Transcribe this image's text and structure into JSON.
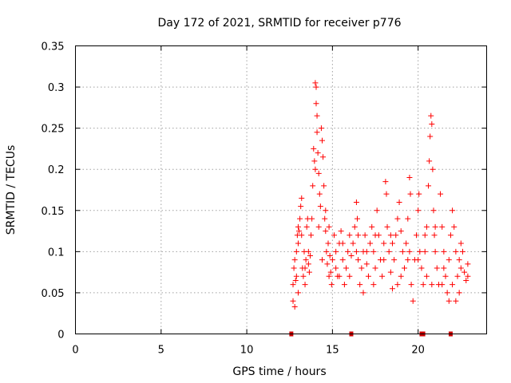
{
  "chart_data": {
    "type": "scatter",
    "title": "Day 172 of 2021, SRMTID for receiver p776",
    "xlabel": "GPS time / hours",
    "ylabel": "SRMTID / TECUs",
    "xlim": [
      0,
      24
    ],
    "ylim": [
      0,
      0.35
    ],
    "x_ticks": [
      "0",
      "5",
      "10",
      "15",
      "20"
    ],
    "x_tick_values": [
      0,
      5,
      10,
      15,
      20
    ],
    "y_ticks": [
      "0",
      "0.05",
      "0.1",
      "0.15",
      "0.2",
      "0.25",
      "0.3",
      "0.35"
    ],
    "y_tick_values": [
      0,
      0.05,
      0.1,
      0.15,
      0.2,
      0.25,
      0.3,
      0.35
    ],
    "grid": true,
    "marker": "+",
    "series_color": "#ff0000",
    "baseline_markers_x": [
      12.6,
      16.1,
      20.2,
      20.3,
      21.9
    ],
    "series": [
      {
        "name": "SRMTID",
        "points": [
          [
            12.7,
            0.04
          ],
          [
            12.7,
            0.06
          ],
          [
            12.75,
            0.08
          ],
          [
            12.8,
            0.09
          ],
          [
            12.8,
            0.033
          ],
          [
            12.85,
            0.065
          ],
          [
            12.9,
            0.07
          ],
          [
            12.95,
            0.12
          ],
          [
            13.0,
            0.13
          ],
          [
            13.0,
            0.11
          ],
          [
            13.05,
            0.125
          ],
          [
            13.1,
            0.14
          ],
          [
            13.15,
            0.155
          ],
          [
            13.2,
            0.165
          ],
          [
            13.25,
            0.08
          ],
          [
            13.3,
            0.07
          ],
          [
            13.35,
            0.1
          ],
          [
            13.4,
            0.06
          ],
          [
            13.45,
            0.09
          ],
          [
            13.5,
            0.13
          ],
          [
            13.55,
            0.14
          ],
          [
            13.6,
            0.085
          ],
          [
            13.65,
            0.075
          ],
          [
            13.7,
            0.095
          ],
          [
            13.75,
            0.12
          ],
          [
            13.8,
            0.14
          ],
          [
            13.85,
            0.18
          ],
          [
            13.9,
            0.225
          ],
          [
            13.95,
            0.21
          ],
          [
            14.0,
            0.2
          ],
          [
            14.0,
            0.305
          ],
          [
            14.05,
            0.3
          ],
          [
            14.05,
            0.28
          ],
          [
            14.1,
            0.265
          ],
          [
            14.1,
            0.245
          ],
          [
            14.15,
            0.22
          ],
          [
            14.2,
            0.195
          ],
          [
            14.25,
            0.17
          ],
          [
            14.3,
            0.155
          ],
          [
            14.35,
            0.25
          ],
          [
            14.4,
            0.235
          ],
          [
            14.45,
            0.215
          ],
          [
            14.5,
            0.18
          ],
          [
            14.55,
            0.14
          ],
          [
            14.6,
            0.125
          ],
          [
            14.65,
            0.1
          ],
          [
            14.7,
            0.085
          ],
          [
            14.75,
            0.11
          ],
          [
            14.8,
            0.13
          ],
          [
            14.85,
            0.095
          ],
          [
            14.9,
            0.075
          ],
          [
            14.95,
            0.06
          ],
          [
            15.0,
            0.09
          ],
          [
            15.1,
            0.12
          ],
          [
            15.2,
            0.1
          ],
          [
            15.3,
            0.07
          ],
          [
            15.4,
            0.11
          ],
          [
            15.5,
            0.125
          ],
          [
            15.6,
            0.09
          ],
          [
            15.7,
            0.06
          ],
          [
            15.8,
            0.08
          ],
          [
            15.9,
            0.1
          ],
          [
            16.0,
            0.12
          ],
          [
            16.1,
            0.095
          ],
          [
            16.2,
            0.11
          ],
          [
            16.3,
            0.13
          ],
          [
            16.4,
            0.16
          ],
          [
            16.45,
            0.14
          ],
          [
            16.5,
            0.09
          ],
          [
            16.6,
            0.06
          ],
          [
            16.7,
            0.08
          ],
          [
            16.8,
            0.1
          ],
          [
            16.9,
            0.12
          ],
          [
            17.0,
            0.085
          ],
          [
            17.1,
            0.07
          ],
          [
            17.2,
            0.11
          ],
          [
            17.3,
            0.13
          ],
          [
            17.4,
            0.1
          ],
          [
            17.5,
            0.08
          ],
          [
            17.6,
            0.15
          ],
          [
            17.7,
            0.12
          ],
          [
            17.8,
            0.09
          ],
          [
            17.9,
            0.07
          ],
          [
            18.0,
            0.11
          ],
          [
            18.1,
            0.185
          ],
          [
            18.15,
            0.17
          ],
          [
            18.2,
            0.13
          ],
          [
            18.3,
            0.1
          ],
          [
            18.4,
            0.075
          ],
          [
            18.5,
            0.055
          ],
          [
            18.6,
            0.09
          ],
          [
            18.7,
            0.12
          ],
          [
            18.8,
            0.14
          ],
          [
            18.9,
            0.16
          ],
          [
            19.0,
            0.125
          ],
          [
            19.1,
            0.1
          ],
          [
            19.2,
            0.08
          ],
          [
            19.3,
            0.11
          ],
          [
            19.4,
            0.14
          ],
          [
            19.5,
            0.19
          ],
          [
            19.55,
            0.17
          ],
          [
            19.6,
            0.06
          ],
          [
            19.7,
            0.04
          ],
          [
            19.8,
            0.09
          ],
          [
            19.9,
            0.12
          ],
          [
            20.0,
            0.15
          ],
          [
            20.05,
            0.17
          ],
          [
            20.1,
            0.1
          ],
          [
            20.2,
            0.08
          ],
          [
            20.3,
            0.06
          ],
          [
            20.4,
            0.1
          ],
          [
            20.5,
            0.13
          ],
          [
            20.6,
            0.18
          ],
          [
            20.65,
            0.21
          ],
          [
            20.7,
            0.24
          ],
          [
            20.75,
            0.265
          ],
          [
            20.8,
            0.255
          ],
          [
            20.85,
            0.2
          ],
          [
            20.9,
            0.15
          ],
          [
            20.95,
            0.12
          ],
          [
            21.0,
            0.1
          ],
          [
            21.1,
            0.08
          ],
          [
            21.2,
            0.06
          ],
          [
            21.3,
            0.17
          ],
          [
            21.4,
            0.13
          ],
          [
            21.5,
            0.1
          ],
          [
            21.6,
            0.07
          ],
          [
            21.7,
            0.05
          ],
          [
            21.8,
            0.09
          ],
          [
            21.9,
            0.12
          ],
          [
            22.0,
            0.15
          ],
          [
            22.1,
            0.13
          ],
          [
            22.2,
            0.1
          ],
          [
            22.3,
            0.07
          ],
          [
            22.4,
            0.05
          ],
          [
            22.5,
            0.08
          ],
          [
            22.6,
            0.1
          ],
          [
            22.7,
            0.075
          ],
          [
            22.8,
            0.065
          ],
          [
            22.9,
            0.085
          ],
          [
            12.9,
            0.1
          ],
          [
            13.2,
            0.12
          ],
          [
            13.6,
            0.1
          ],
          [
            14.2,
            0.13
          ],
          [
            14.6,
            0.15
          ],
          [
            15.2,
            0.08
          ],
          [
            15.6,
            0.11
          ],
          [
            16.0,
            0.07
          ],
          [
            16.5,
            0.12
          ],
          [
            17.0,
            0.1
          ],
          [
            17.5,
            0.12
          ],
          [
            18.0,
            0.09
          ],
          [
            18.5,
            0.11
          ],
          [
            19.0,
            0.07
          ],
          [
            19.5,
            0.1
          ],
          [
            20.0,
            0.09
          ],
          [
            20.5,
            0.07
          ],
          [
            21.0,
            0.13
          ],
          [
            21.5,
            0.08
          ],
          [
            22.0,
            0.06
          ],
          [
            22.5,
            0.11
          ],
          [
            22.9,
            0.07
          ],
          [
            13.4,
            0.08
          ],
          [
            14.4,
            0.09
          ],
          [
            15.4,
            0.07
          ],
          [
            16.4,
            0.1
          ],
          [
            17.4,
            0.06
          ],
          [
            18.4,
            0.12
          ],
          [
            19.4,
            0.09
          ],
          [
            20.4,
            0.12
          ],
          [
            21.4,
            0.06
          ],
          [
            22.4,
            0.09
          ],
          [
            13.0,
            0.05
          ],
          [
            14.8,
            0.07
          ],
          [
            16.8,
            0.05
          ],
          [
            18.8,
            0.06
          ],
          [
            20.8,
            0.06
          ],
          [
            22.2,
            0.04
          ],
          [
            21.8,
            0.04
          ]
        ]
      }
    ]
  }
}
